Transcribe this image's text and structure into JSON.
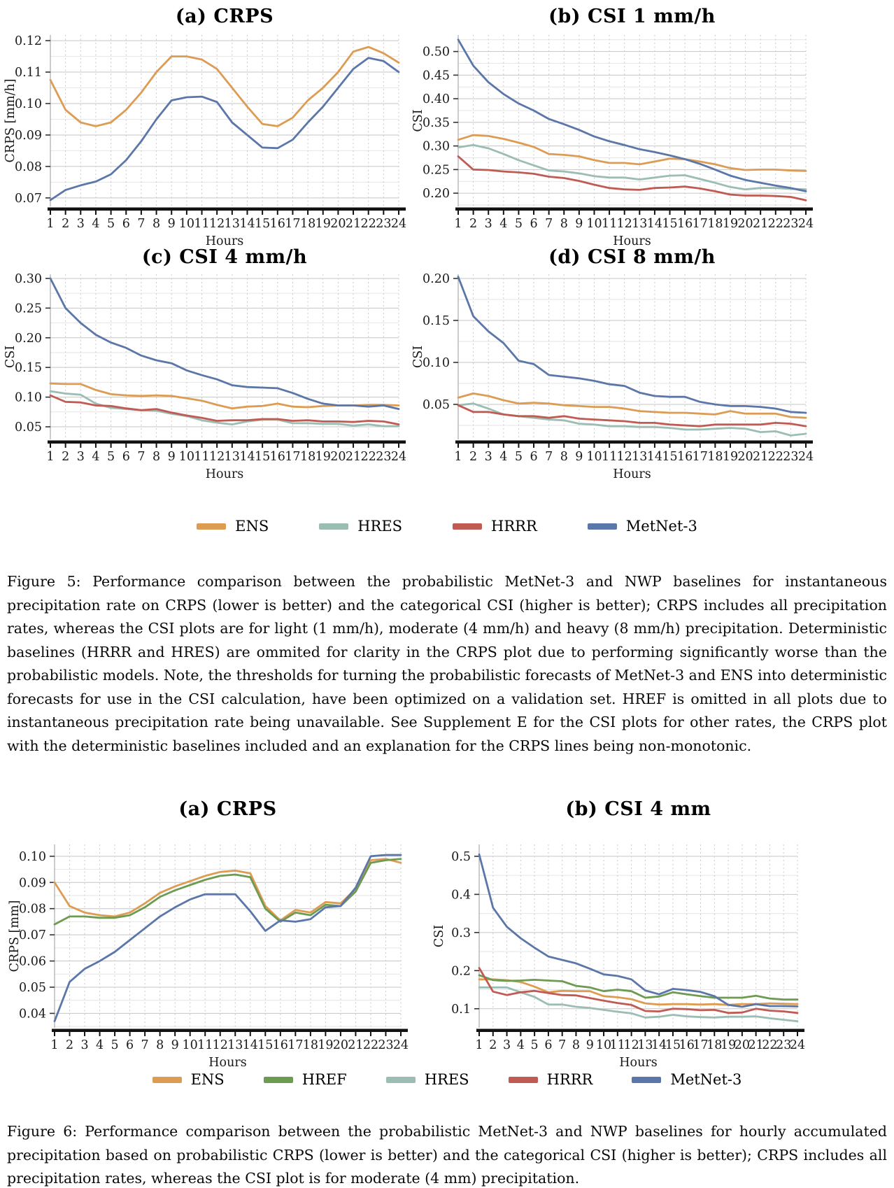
{
  "page": {
    "background": "#ffffff"
  },
  "colors": {
    "ens": "#DD9C53",
    "href": "#6C9B51",
    "hres": "#9BBDB3",
    "hrrr": "#C05B53",
    "metnet3": "#5B76A8",
    "grid_major": "#c6c6c6",
    "grid_minor": "#e6e6e6",
    "grid_vert": "#c9c9c9",
    "axis_black": "#121212",
    "tick_text": "#1a1a1a"
  },
  "hours": [
    1,
    2,
    3,
    4,
    5,
    6,
    7,
    8,
    9,
    10,
    11,
    12,
    13,
    14,
    15,
    16,
    17,
    18,
    19,
    20,
    21,
    22,
    23,
    24
  ],
  "chart_data": [
    {
      "id": "fig5-crps",
      "type": "line",
      "title": "(a) CRPS",
      "xlabel": "Hours",
      "ylabel": "CRPS [mm/h]",
      "yticks": [
        0.07,
        0.08,
        0.09,
        0.1,
        0.11,
        0.12
      ],
      "ytick_labels": [
        "0.07",
        "0.08",
        "0.09",
        "0.10",
        "0.11",
        "0.12"
      ],
      "ymin": 0.0673,
      "ymax": 0.1218,
      "series": [
        {
          "name": "ENS",
          "color": "ens",
          "values": [
            0.1075,
            0.098,
            0.094,
            0.0928,
            0.094,
            0.098,
            0.1035,
            0.11,
            0.115,
            0.115,
            0.114,
            0.111,
            0.105,
            0.099,
            0.0935,
            0.0928,
            0.0955,
            0.101,
            0.105,
            0.11,
            0.1165,
            0.118,
            0.116,
            0.113
          ]
        },
        {
          "name": "MetNet-3",
          "color": "metnet3",
          "values": [
            0.0693,
            0.0725,
            0.074,
            0.0752,
            0.0775,
            0.082,
            0.088,
            0.095,
            0.101,
            0.102,
            0.1022,
            0.1005,
            0.094,
            0.09,
            0.086,
            0.0858,
            0.0885,
            0.094,
            0.099,
            0.105,
            0.111,
            0.1145,
            0.1135,
            0.11
          ]
        }
      ]
    },
    {
      "id": "fig5-csi1",
      "type": "line",
      "title": "(b) CSI 1 mm/h",
      "xlabel": "Hours",
      "ylabel": "CSI",
      "yticks": [
        0.2,
        0.25,
        0.3,
        0.35,
        0.4,
        0.45,
        0.5
      ],
      "ytick_labels": [
        "0.20",
        "0.25",
        "0.30",
        "0.35",
        "0.40",
        "0.45",
        "0.50"
      ],
      "ymin": 0.172,
      "ymax": 0.535,
      "series": [
        {
          "name": "ENS",
          "color": "ens",
          "values": [
            0.313,
            0.323,
            0.321,
            0.315,
            0.307,
            0.298,
            0.283,
            0.281,
            0.278,
            0.27,
            0.264,
            0.264,
            0.261,
            0.267,
            0.273,
            0.272,
            0.267,
            0.261,
            0.253,
            0.249,
            0.25,
            0.25,
            0.248,
            0.247
          ]
        },
        {
          "name": "HRES",
          "color": "hres",
          "values": [
            0.297,
            0.302,
            0.295,
            0.283,
            0.27,
            0.259,
            0.248,
            0.246,
            0.242,
            0.236,
            0.233,
            0.233,
            0.229,
            0.233,
            0.237,
            0.238,
            0.23,
            0.222,
            0.213,
            0.208,
            0.211,
            0.211,
            0.209,
            0.208
          ]
        },
        {
          "name": "HRRR",
          "color": "hrrr",
          "values": [
            0.278,
            0.25,
            0.249,
            0.246,
            0.244,
            0.241,
            0.235,
            0.232,
            0.226,
            0.218,
            0.211,
            0.208,
            0.207,
            0.211,
            0.212,
            0.214,
            0.21,
            0.204,
            0.197,
            0.195,
            0.195,
            0.194,
            0.192,
            0.185
          ]
        },
        {
          "name": "MetNet-3",
          "color": "metnet3",
          "values": [
            0.525,
            0.47,
            0.435,
            0.41,
            0.39,
            0.375,
            0.357,
            0.346,
            0.334,
            0.32,
            0.31,
            0.302,
            0.293,
            0.287,
            0.28,
            0.272,
            0.262,
            0.25,
            0.237,
            0.228,
            0.222,
            0.216,
            0.211,
            0.204
          ]
        }
      ]
    },
    {
      "id": "fig5-csi4",
      "type": "line",
      "title": "(c) CSI 4 mm/h",
      "xlabel": "Hours",
      "ylabel": "CSI",
      "yticks": [
        0.05,
        0.1,
        0.15,
        0.2,
        0.25,
        0.3
      ],
      "ytick_labels": [
        "0.05",
        "0.10",
        "0.15",
        "0.20",
        "0.25",
        "0.30"
      ],
      "ymin": 0.0288,
      "ymax": 0.307,
      "series": [
        {
          "name": "ENS",
          "color": "ens",
          "values": [
            0.123,
            0.122,
            0.122,
            0.112,
            0.105,
            0.103,
            0.102,
            0.103,
            0.102,
            0.098,
            0.094,
            0.087,
            0.081,
            0.084,
            0.085,
            0.089,
            0.084,
            0.083,
            0.085,
            0.086,
            0.086,
            0.087,
            0.087,
            0.086
          ]
        },
        {
          "name": "HRES",
          "color": "hres",
          "values": [
            0.11,
            0.106,
            0.104,
            0.089,
            0.082,
            0.08,
            0.078,
            0.077,
            0.072,
            0.068,
            0.061,
            0.057,
            0.054,
            0.059,
            0.062,
            0.062,
            0.056,
            0.056,
            0.055,
            0.055,
            0.052,
            0.054,
            0.051,
            0.051
          ]
        },
        {
          "name": "HRRR",
          "color": "hrrr",
          "values": [
            0.103,
            0.092,
            0.091,
            0.086,
            0.085,
            0.081,
            0.078,
            0.08,
            0.074,
            0.069,
            0.065,
            0.06,
            0.061,
            0.061,
            0.063,
            0.063,
            0.06,
            0.061,
            0.059,
            0.059,
            0.058,
            0.06,
            0.059,
            0.054
          ]
        },
        {
          "name": "MetNet-3",
          "color": "metnet3",
          "values": [
            0.3,
            0.25,
            0.225,
            0.205,
            0.192,
            0.183,
            0.17,
            0.162,
            0.157,
            0.145,
            0.137,
            0.13,
            0.12,
            0.117,
            0.116,
            0.115,
            0.107,
            0.097,
            0.089,
            0.086,
            0.086,
            0.084,
            0.086,
            0.08
          ]
        }
      ]
    },
    {
      "id": "fig5-csi8",
      "type": "line",
      "title": "(d) CSI 8 mm/h",
      "xlabel": "Hours",
      "ylabel": "CSI",
      "yticks": [
        0.05,
        0.1,
        0.15,
        0.2
      ],
      "ytick_labels": [
        "0.05",
        "0.10",
        "0.15",
        "0.20"
      ],
      "ymin": 0.0083,
      "ymax": 0.205,
      "series": [
        {
          "name": "ENS",
          "color": "ens",
          "values": [
            0.058,
            0.063,
            0.06,
            0.055,
            0.051,
            0.052,
            0.051,
            0.049,
            0.048,
            0.047,
            0.047,
            0.045,
            0.042,
            0.041,
            0.04,
            0.04,
            0.039,
            0.038,
            0.042,
            0.039,
            0.039,
            0.039,
            0.035,
            0.034
          ]
        },
        {
          "name": "HRES",
          "color": "hres",
          "values": [
            0.049,
            0.051,
            0.045,
            0.038,
            0.036,
            0.034,
            0.032,
            0.031,
            0.027,
            0.026,
            0.024,
            0.024,
            0.023,
            0.023,
            0.022,
            0.02,
            0.02,
            0.021,
            0.022,
            0.021,
            0.017,
            0.018,
            0.013,
            0.015
          ]
        },
        {
          "name": "HRRR",
          "color": "hrrr",
          "values": [
            0.049,
            0.041,
            0.041,
            0.038,
            0.036,
            0.036,
            0.034,
            0.036,
            0.033,
            0.032,
            0.031,
            0.03,
            0.028,
            0.028,
            0.026,
            0.025,
            0.024,
            0.026,
            0.026,
            0.026,
            0.026,
            0.028,
            0.027,
            0.024
          ]
        },
        {
          "name": "MetNet-3",
          "color": "metnet3",
          "values": [
            0.202,
            0.155,
            0.137,
            0.123,
            0.102,
            0.098,
            0.085,
            0.083,
            0.081,
            0.078,
            0.074,
            0.072,
            0.064,
            0.06,
            0.059,
            0.059,
            0.053,
            0.05,
            0.048,
            0.048,
            0.047,
            0.045,
            0.041,
            0.04
          ]
        }
      ]
    },
    {
      "id": "fig6-crps",
      "type": "line",
      "title": "(a) CRPS",
      "xlabel": "Hours",
      "ylabel": "CRPS [mm]",
      "yticks": [
        0.04,
        0.05,
        0.06,
        0.07,
        0.08,
        0.09,
        0.1
      ],
      "ytick_labels": [
        "0.04",
        "0.05",
        "0.06",
        "0.07",
        "0.08",
        "0.09",
        "0.10"
      ],
      "ymin": 0.0345,
      "ymax": 0.1045,
      "series": [
        {
          "name": "ENS",
          "color": "ens",
          "values": [
            0.09,
            0.081,
            0.0785,
            0.0775,
            0.077,
            0.0785,
            0.082,
            0.086,
            0.0885,
            0.0905,
            0.0925,
            0.094,
            0.0945,
            0.0935,
            0.081,
            0.0755,
            0.0795,
            0.0785,
            0.0825,
            0.082,
            0.0875,
            0.0985,
            0.099,
            0.0975
          ]
        },
        {
          "name": "HREF",
          "color": "href",
          "values": [
            0.074,
            0.077,
            0.077,
            0.0765,
            0.0765,
            0.0775,
            0.0805,
            0.0845,
            0.087,
            0.089,
            0.091,
            0.0925,
            0.093,
            0.092,
            0.08,
            0.075,
            0.0785,
            0.0775,
            0.0815,
            0.081,
            0.0865,
            0.0975,
            0.0985,
            0.099
          ]
        },
        {
          "name": "MetNet-3",
          "color": "metnet3",
          "values": [
            0.037,
            0.052,
            0.057,
            0.06,
            0.0635,
            0.068,
            0.0725,
            0.077,
            0.0805,
            0.0835,
            0.0855,
            0.0855,
            0.0855,
            0.079,
            0.0715,
            0.0755,
            0.075,
            0.076,
            0.0805,
            0.081,
            0.088,
            0.1,
            0.1005,
            0.1005
          ]
        }
      ]
    },
    {
      "id": "fig6-csi4",
      "type": "line",
      "title": "(b) CSI 4 mm",
      "xlabel": "Hours",
      "ylabel": "CSI",
      "yticks": [
        0.1,
        0.2,
        0.3,
        0.4,
        0.5
      ],
      "ytick_labels": [
        "0.1",
        "0.2",
        "0.3",
        "0.4",
        "0.5"
      ],
      "ymin": 0.05,
      "ymax": 0.531,
      "series": [
        {
          "name": "ENS",
          "color": "ens",
          "values": [
            0.177,
            0.177,
            0.175,
            0.17,
            0.158,
            0.143,
            0.147,
            0.146,
            0.146,
            0.133,
            0.13,
            0.125,
            0.114,
            0.111,
            0.112,
            0.112,
            0.111,
            0.112,
            0.11,
            0.112,
            0.112,
            0.114,
            0.113,
            0.112
          ]
        },
        {
          "name": "HREF",
          "color": "href",
          "values": [
            0.188,
            0.175,
            0.173,
            0.174,
            0.176,
            0.174,
            0.172,
            0.16,
            0.156,
            0.146,
            0.15,
            0.146,
            0.129,
            0.132,
            0.143,
            0.138,
            0.133,
            0.129,
            0.129,
            0.129,
            0.134,
            0.127,
            0.124,
            0.124
          ]
        },
        {
          "name": "HRES",
          "color": "hres",
          "values": [
            0.156,
            0.156,
            0.156,
            0.143,
            0.131,
            0.111,
            0.111,
            0.105,
            0.102,
            0.097,
            0.092,
            0.088,
            0.077,
            0.079,
            0.084,
            0.08,
            0.078,
            0.077,
            0.079,
            0.079,
            0.08,
            0.075,
            0.071,
            0.067
          ]
        },
        {
          "name": "HRRR",
          "color": "hrrr",
          "values": [
            0.207,
            0.145,
            0.136,
            0.143,
            0.147,
            0.141,
            0.136,
            0.135,
            0.128,
            0.121,
            0.115,
            0.11,
            0.094,
            0.093,
            0.1,
            0.099,
            0.096,
            0.097,
            0.089,
            0.09,
            0.1,
            0.095,
            0.093,
            0.089
          ]
        },
        {
          "name": "MetNet-3",
          "color": "metnet3",
          "values": [
            0.505,
            0.365,
            0.315,
            0.285,
            0.26,
            0.237,
            0.228,
            0.219,
            0.205,
            0.19,
            0.186,
            0.177,
            0.148,
            0.138,
            0.152,
            0.149,
            0.144,
            0.133,
            0.11,
            0.105,
            0.112,
            0.107,
            0.107,
            0.106
          ]
        }
      ]
    }
  ],
  "figure5": {
    "legend": [
      {
        "label": "ENS",
        "color": "ens"
      },
      {
        "label": "HRES",
        "color": "hres"
      },
      {
        "label": "HRRR",
        "color": "hrrr"
      },
      {
        "label": "MetNet-3",
        "color": "metnet3"
      }
    ],
    "caption": "Figure 5: Performance comparison between the probabilistic MetNet-3 and NWP baselines for instantaneous precipitation rate on CRPS (lower is better) and the categorical CSI (higher is better); CRPS includes all precipitation rates, whereas the CSI plots are for light (1 mm/h), moderate (4 mm/h) and heavy (8 mm/h) precipitation. Deterministic baselines (HRRR and HRES) are ommited for clarity in the CRPS plot due to performing significantly worse than the probabilistic models. Note, the thresholds for turning the probabilistic forecasts of MetNet-3 and ENS into deterministic forecasts for use in the CSI calculation, have been optimized on a validation set. HREF is omitted in all plots due to instantaneous precipitation rate being unavailable. See Supplement E for the CSI plots for other rates, the CRPS plot with the deterministic baselines included and an explanation for the CRPS lines being non-monotonic."
  },
  "figure6": {
    "legend": [
      {
        "label": "ENS",
        "color": "ens"
      },
      {
        "label": "HREF",
        "color": "href"
      },
      {
        "label": "HRES",
        "color": "hres"
      },
      {
        "label": "HRRR",
        "color": "hrrr"
      },
      {
        "label": "MetNet-3",
        "color": "metnet3"
      }
    ],
    "caption": "Figure 6: Performance comparison between the probabilistic MetNet-3 and NWP baselines for hourly accumulated precipitation based on probabilistic CRPS (lower is better) and the categorical CSI (higher is better); CRPS includes all precipitation rates, whereas the CSI plot is for moderate (4 mm) precipitation."
  }
}
